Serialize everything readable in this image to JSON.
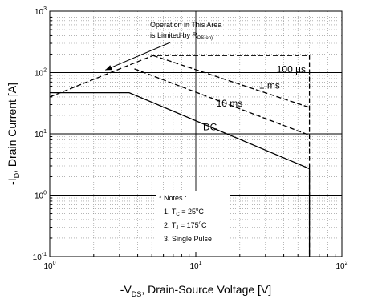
{
  "chart_data": {
    "type": "line",
    "x_scale": "log",
    "y_scale": "log",
    "xlim": [
      1,
      100
    ],
    "ylim": [
      0.1,
      1000
    ],
    "grid": true,
    "legend": "none",
    "x_ticks": [
      {
        "base": "10",
        "exp": "0",
        "value": 1
      },
      {
        "base": "10",
        "exp": "1",
        "value": 10
      },
      {
        "base": "10",
        "exp": "2",
        "value": 100
      }
    ],
    "y_ticks": [
      {
        "base": "10",
        "exp": "-1",
        "value": 0.1
      },
      {
        "base": "10",
        "exp": "0",
        "value": 1
      },
      {
        "base": "10",
        "exp": "1",
        "value": 10
      },
      {
        "base": "10",
        "exp": "2",
        "value": 100
      },
      {
        "base": "10",
        "exp": "3",
        "value": 1000
      }
    ],
    "xlabel": {
      "pre": "-V",
      "sub": "DS",
      "post": ", Drain-Source Voltage [V]"
    },
    "ylabel": {
      "pre": "-I",
      "sub": "D",
      "post": ", Drain Current [A]"
    },
    "series": [
      {
        "name": "100 µs",
        "style": "dashed",
        "x": [
          1,
          5.1,
          28,
          60,
          60
        ],
        "y": [
          40,
          190,
          190,
          190,
          0.1
        ]
      },
      {
        "name": "1 ms",
        "style": "dashed",
        "x": [
          5.1,
          60
        ],
        "y": [
          190,
          27
        ]
      },
      {
        "name": "10 ms",
        "style": "dashed",
        "x": [
          3.8,
          60
        ],
        "y": [
          115,
          9.5
        ]
      },
      {
        "name": "DC",
        "style": "solid",
        "x": [
          1,
          3.5,
          60,
          60
        ],
        "y": [
          47,
          47,
          2.7,
          0.1
        ]
      }
    ],
    "curve_labels": [
      {
        "text": "100 µs",
        "x": 45,
        "y": 100
      },
      {
        "text": "1 ms",
        "x": 32,
        "y": 55
      },
      {
        "text": "10 ms",
        "x": 17,
        "y": 28
      },
      {
        "text": "DC",
        "x": 12.5,
        "y": 11.5
      }
    ],
    "annotation": {
      "line1": "Operation in This Area",
      "line2_pre": "is Limited by R",
      "line2_sub": "DS(on)",
      "arrow_to": {
        "x": 2.4,
        "y": 110
      }
    },
    "notes": {
      "title": "* Notes :",
      "items": [
        {
          "pre": "1. T",
          "sub": "C",
          "post": " = 25",
          "deg": "o",
          "unit": "C"
        },
        {
          "pre": "2. T",
          "sub": "J",
          "post": " = 175",
          "deg": "o",
          "unit": "C"
        },
        {
          "pre": "3. Single Pulse",
          "sub": "",
          "post": "",
          "deg": "",
          "unit": ""
        }
      ]
    }
  }
}
